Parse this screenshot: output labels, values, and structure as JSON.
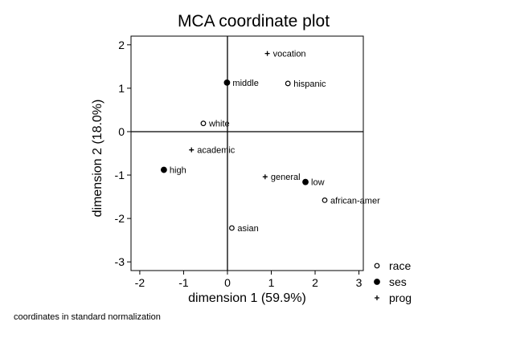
{
  "chart_data": {
    "type": "scatter",
    "title": "MCA coordinate plot",
    "xlabel": "dimension 1 (59.9%)",
    "ylabel": "dimension 2 (18.0%)",
    "xlim": [
      -2.2,
      3.1
    ],
    "ylim": [
      -3.2,
      2.2
    ],
    "xticks": [
      -2,
      -1,
      0,
      1,
      2,
      3
    ],
    "yticks": [
      -3,
      -2,
      -1,
      0,
      1,
      2
    ],
    "reference_lines": {
      "x": 0,
      "y": 0
    },
    "grid": false,
    "legend_position": "bottom-right",
    "series": [
      {
        "name": "race",
        "marker": "hollow-circle",
        "points": [
          {
            "label": "hispanic",
            "x": 1.38,
            "y": 1.11
          },
          {
            "label": "white",
            "x": -0.55,
            "y": 0.19
          },
          {
            "label": "african-amer",
            "x": 2.22,
            "y": -1.58
          },
          {
            "label": "asian",
            "x": 0.1,
            "y": -2.22
          }
        ]
      },
      {
        "name": "ses",
        "marker": "filled-circle",
        "points": [
          {
            "label": "middle",
            "x": -0.01,
            "y": 1.13
          },
          {
            "label": "high",
            "x": -1.45,
            "y": -0.88
          },
          {
            "label": "low",
            "x": 1.78,
            "y": -1.16
          }
        ]
      },
      {
        "name": "prog",
        "marker": "plus",
        "points": [
          {
            "label": "vocation",
            "x": 0.91,
            "y": 1.8
          },
          {
            "label": "academic",
            "x": -0.82,
            "y": -0.42
          },
          {
            "label": "general",
            "x": 0.86,
            "y": -1.04
          }
        ]
      }
    ]
  },
  "note": "coordinates in standard normalization"
}
